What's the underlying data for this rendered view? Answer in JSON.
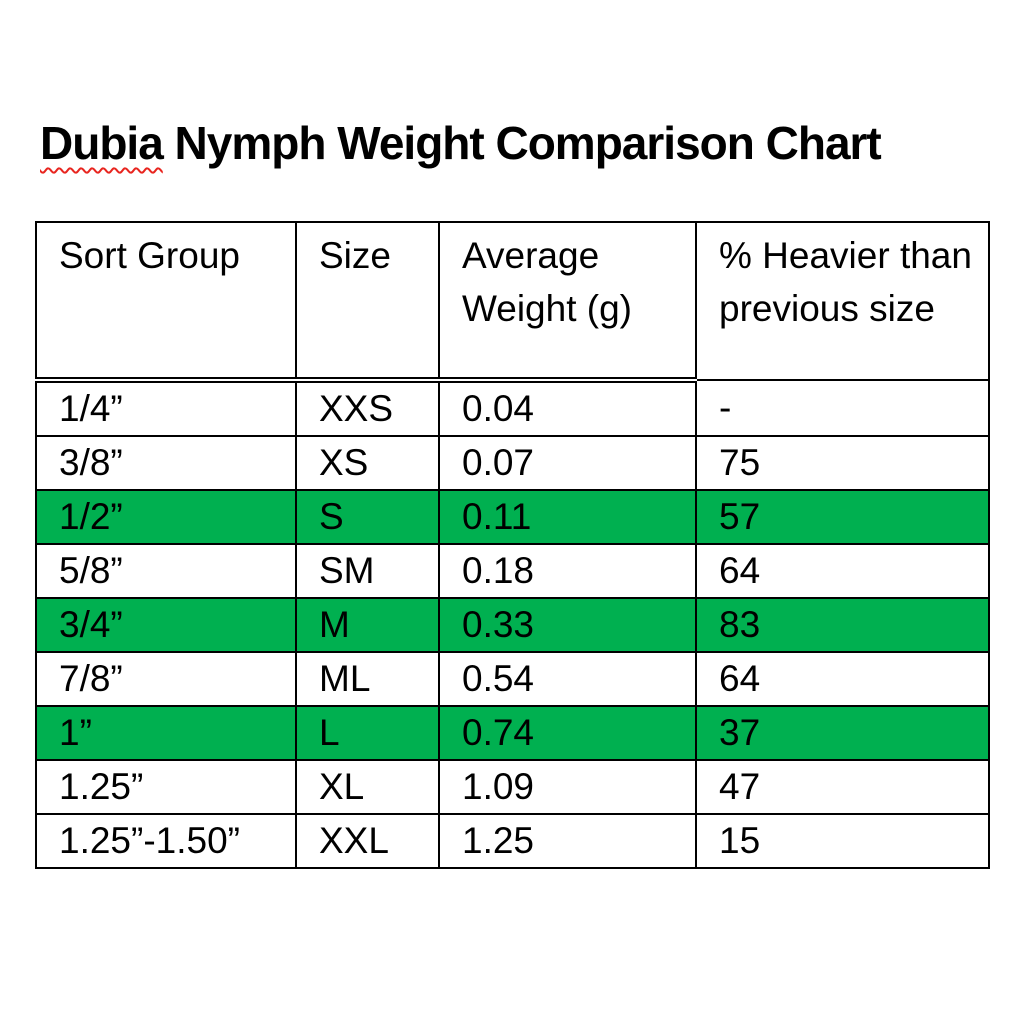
{
  "title": {
    "misspelled_word": "Dubia",
    "rest": " Nymph Weight Comparison Chart"
  },
  "colors": {
    "highlight_green": "#00B050",
    "spellcheck_underline_red": "#E8251F",
    "border": "#000000",
    "text": "#000000",
    "background": "#FFFFFF"
  },
  "chart_data": {
    "type": "table",
    "title": "Dubia Nymph Weight Comparison Chart",
    "columns": [
      "Sort Group",
      "Size",
      "Average Weight (g)",
      "% Heavier than previous size"
    ],
    "rows": [
      {
        "sort_group": "1/4”",
        "size": "XXS",
        "avg_weight_g": "0.04",
        "pct_heavier": "-",
        "highlighted": false
      },
      {
        "sort_group": "3/8”",
        "size": "XS",
        "avg_weight_g": "0.07",
        "pct_heavier": "75",
        "highlighted": false
      },
      {
        "sort_group": "1/2”",
        "size": "S",
        "avg_weight_g": "0.11",
        "pct_heavier": "57",
        "highlighted": true
      },
      {
        "sort_group": "5/8”",
        "size": "SM",
        "avg_weight_g": "0.18",
        "pct_heavier": "64",
        "highlighted": false
      },
      {
        "sort_group": "3/4”",
        "size": "M",
        "avg_weight_g": "0.33",
        "pct_heavier": "83",
        "highlighted": true
      },
      {
        "sort_group": "7/8”",
        "size": "ML",
        "avg_weight_g": "0.54",
        "pct_heavier": "64",
        "highlighted": false
      },
      {
        "sort_group": "1”",
        "size": "L",
        "avg_weight_g": "0.74",
        "pct_heavier": "37",
        "highlighted": true
      },
      {
        "sort_group": "1.25”",
        "size": "XL",
        "avg_weight_g": "1.09",
        "pct_heavier": "47",
        "highlighted": false
      },
      {
        "sort_group": "1.25”-1.50”",
        "size": "XXL",
        "avg_weight_g": "1.25",
        "pct_heavier": "15",
        "highlighted": false
      }
    ]
  }
}
